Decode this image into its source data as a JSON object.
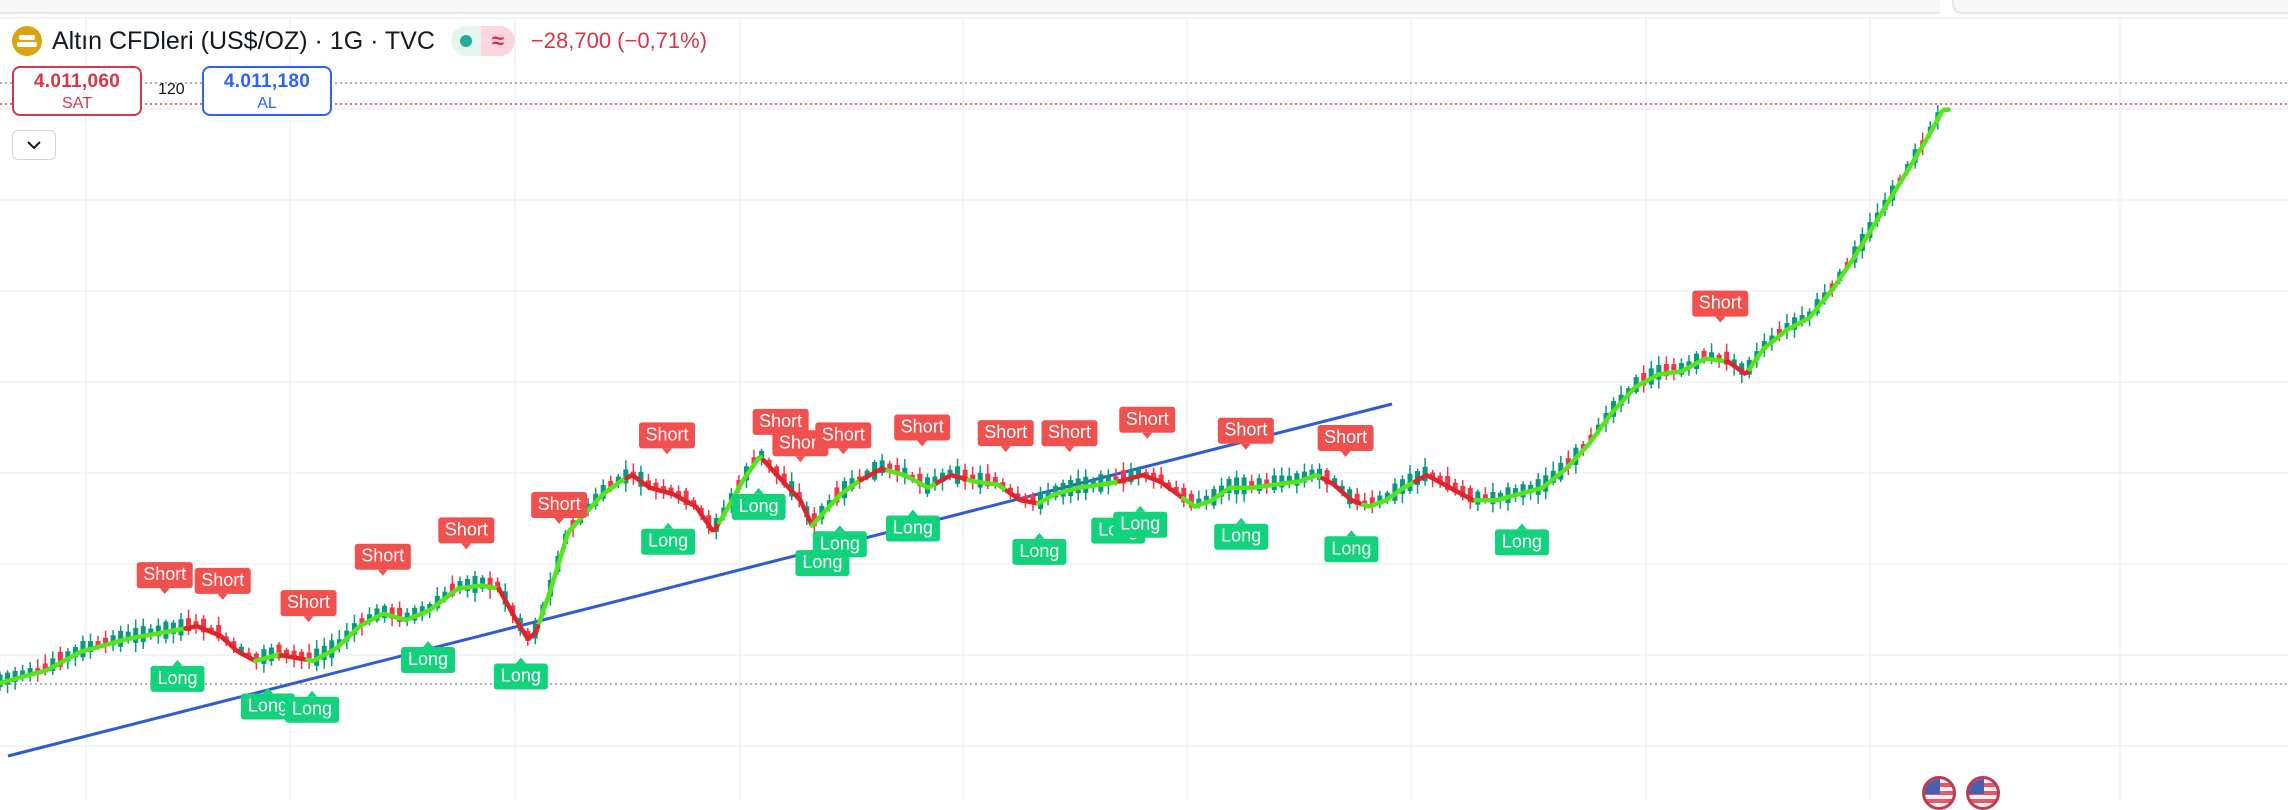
{
  "header": {
    "symbol_title": "Altın CFDleri (US$/OZ) · 1G · TVC",
    "change_text": "−28,700 (−0,71%)",
    "icons": [
      "gold-logo-icon",
      "market-open-dot-icon",
      "approx-icon"
    ]
  },
  "trade": {
    "sell_price": "4.011,060",
    "sell_label": "SAT",
    "spread": "120",
    "buy_price": "4.011,180",
    "buy_label": "AL"
  },
  "colors": {
    "up_candle": "#089981",
    "down_candle": "#f23645",
    "line_up": "#55e51c",
    "line_down": "#e0242c",
    "short_label": "#f0514f",
    "long_label": "#12d27b",
    "trendline": "#2e5bd6",
    "sell": "#d93645",
    "buy": "#2962ff"
  },
  "chart_data": {
    "type": "candlestick",
    "title": "Altın CFDleri (US$/OZ) · 1G · TVC",
    "grid": true,
    "price_axis_visible": false,
    "time_axis_visible": false,
    "close_path": {
      "points": [
        [
          0,
          0.0
        ],
        [
          40,
          0.02
        ],
        [
          70,
          0.05
        ],
        [
          110,
          0.07
        ],
        [
          140,
          0.08
        ],
        [
          170,
          0.09
        ],
        [
          190,
          0.075
        ],
        [
          205,
          0.05
        ],
        [
          220,
          0.035
        ],
        [
          240,
          0.045
        ],
        [
          255,
          0.04
        ],
        [
          270,
          0.035
        ],
        [
          290,
          0.055
        ],
        [
          310,
          0.09
        ],
        [
          330,
          0.11
        ],
        [
          350,
          0.1
        ],
        [
          370,
          0.115
        ],
        [
          395,
          0.15
        ],
        [
          415,
          0.155
        ],
        [
          430,
          0.15
        ],
        [
          445,
          0.1
        ],
        [
          455,
          0.07
        ],
        [
          462,
          0.08
        ],
        [
          475,
          0.15
        ],
        [
          490,
          0.24
        ],
        [
          505,
          0.27
        ],
        [
          520,
          0.3
        ],
        [
          535,
          0.32
        ],
        [
          545,
          0.33
        ],
        [
          560,
          0.31
        ],
        [
          580,
          0.3
        ],
        [
          600,
          0.28
        ],
        [
          615,
          0.24
        ],
        [
          625,
          0.27
        ],
        [
          640,
          0.32
        ],
        [
          655,
          0.36
        ],
        [
          670,
          0.33
        ],
        [
          690,
          0.29
        ],
        [
          700,
          0.25
        ],
        [
          710,
          0.27
        ],
        [
          725,
          0.3
        ],
        [
          740,
          0.32
        ],
        [
          760,
          0.34
        ],
        [
          780,
          0.33
        ],
        [
          800,
          0.31
        ],
        [
          820,
          0.33
        ],
        [
          840,
          0.32
        ],
        [
          860,
          0.315
        ],
        [
          880,
          0.29
        ],
        [
          895,
          0.285
        ],
        [
          910,
          0.3
        ],
        [
          930,
          0.31
        ],
        [
          950,
          0.315
        ],
        [
          965,
          0.32
        ],
        [
          985,
          0.33
        ],
        [
          1000,
          0.32
        ],
        [
          1015,
          0.3
        ],
        [
          1030,
          0.28
        ],
        [
          1045,
          0.29
        ],
        [
          1060,
          0.31
        ],
        [
          1080,
          0.31
        ],
        [
          1100,
          0.315
        ],
        [
          1120,
          0.32
        ],
        [
          1135,
          0.33
        ],
        [
          1150,
          0.315
        ],
        [
          1165,
          0.29
        ],
        [
          1180,
          0.28
        ],
        [
          1195,
          0.29
        ],
        [
          1210,
          0.31
        ],
        [
          1230,
          0.33
        ],
        [
          1250,
          0.31
        ],
        [
          1270,
          0.29
        ],
        [
          1290,
          0.29
        ],
        [
          1310,
          0.3
        ],
        [
          1330,
          0.31
        ],
        [
          1350,
          0.34
        ],
        [
          1370,
          0.38
        ],
        [
          1390,
          0.43
        ],
        [
          1410,
          0.47
        ],
        [
          1430,
          0.49
        ],
        [
          1450,
          0.495
        ],
        [
          1470,
          0.515
        ],
        [
          1490,
          0.51
        ],
        [
          1505,
          0.49
        ],
        [
          1520,
          0.53
        ],
        [
          1540,
          0.56
        ],
        [
          1560,
          0.58
        ],
        [
          1580,
          0.625
        ],
        [
          1600,
          0.68
        ],
        [
          1620,
          0.74
        ],
        [
          1640,
          0.8
        ],
        [
          1660,
          0.86
        ],
        [
          1675,
          0.91
        ]
      ],
      "direction_segments": [
        {
          "from": 0,
          "to": 160,
          "dir": "up"
        },
        {
          "from": 160,
          "to": 220,
          "dir": "down"
        },
        {
          "from": 220,
          "to": 242,
          "dir": "up"
        },
        {
          "from": 242,
          "to": 265,
          "dir": "down"
        },
        {
          "from": 265,
          "to": 430,
          "dir": "up"
        },
        {
          "from": 430,
          "to": 465,
          "dir": "down"
        },
        {
          "from": 465,
          "to": 540,
          "dir": "up"
        },
        {
          "from": 540,
          "to": 620,
          "dir": "down"
        },
        {
          "from": 620,
          "to": 658,
          "dir": "up"
        },
        {
          "from": 658,
          "to": 700,
          "dir": "down"
        },
        {
          "from": 700,
          "to": 742,
          "dir": "up"
        },
        {
          "from": 742,
          "to": 765,
          "dir": "down"
        },
        {
          "from": 765,
          "to": 808,
          "dir": "up"
        },
        {
          "from": 808,
          "to": 835,
          "dir": "down"
        },
        {
          "from": 835,
          "to": 868,
          "dir": "up"
        },
        {
          "from": 868,
          "to": 895,
          "dir": "down"
        },
        {
          "from": 895,
          "to": 965,
          "dir": "up"
        },
        {
          "from": 965,
          "to": 1020,
          "dir": "down"
        },
        {
          "from": 1020,
          "to": 1140,
          "dir": "up"
        },
        {
          "from": 1140,
          "to": 1175,
          "dir": "down"
        },
        {
          "from": 1175,
          "to": 1220,
          "dir": "up"
        },
        {
          "from": 1220,
          "to": 1272,
          "dir": "down"
        },
        {
          "from": 1272,
          "to": 1488,
          "dir": "up"
        },
        {
          "from": 1488,
          "to": 1508,
          "dir": "down"
        },
        {
          "from": 1508,
          "to": 1680,
          "dir": "up"
        }
      ]
    },
    "signals": [
      {
        "type": "Short",
        "label": "Short",
        "t": 142
      },
      {
        "type": "Short",
        "label": "Short",
        "t": 192
      },
      {
        "type": "Short",
        "label": "Short",
        "t": 266
      },
      {
        "type": "Short",
        "label": "Short",
        "t": 330
      },
      {
        "type": "Short",
        "label": "Short",
        "t": 402
      },
      {
        "type": "Short",
        "label": "Short",
        "t": 482
      },
      {
        "type": "Short",
        "label": "Short",
        "t": 575
      },
      {
        "type": "Short",
        "label": "Short",
        "t": 673
      },
      {
        "type": "Short",
        "label": "Short",
        "t": 690
      },
      {
        "type": "Short",
        "label": "Short",
        "t": 727
      },
      {
        "type": "Short",
        "label": "Short",
        "t": 795
      },
      {
        "type": "Short",
        "label": "Short",
        "t": 867
      },
      {
        "type": "Short",
        "label": "Short",
        "t": 922
      },
      {
        "type": "Short",
        "label": "Short",
        "t": 989
      },
      {
        "type": "Short",
        "label": "Short",
        "t": 1074
      },
      {
        "type": "Short",
        "label": "Short",
        "t": 1160
      },
      {
        "type": "Short",
        "label": "Short",
        "t": 1483
      },
      {
        "type": "Long",
        "label": "Long",
        "t": 153
      },
      {
        "type": "Long",
        "label": "Long",
        "t": 231
      },
      {
        "type": "Long",
        "label": "Long",
        "t": 269
      },
      {
        "type": "Long",
        "label": "Long",
        "t": 369
      },
      {
        "type": "Long",
        "label": "Long",
        "t": 449
      },
      {
        "type": "Long",
        "label": "Long",
        "t": 576
      },
      {
        "type": "Long",
        "label": "Long",
        "t": 654
      },
      {
        "type": "Long",
        "label": "Long",
        "t": 709
      },
      {
        "type": "Long",
        "label": "Long",
        "t": 724
      },
      {
        "type": "Long",
        "label": "Long",
        "t": 787
      },
      {
        "type": "Long",
        "label": "Long",
        "t": 896
      },
      {
        "type": "Long",
        "label": "Long",
        "t": 964
      },
      {
        "type": "Long",
        "label": "Long",
        "t": 983
      },
      {
        "type": "Long",
        "label": "Long",
        "t": 1070
      },
      {
        "type": "Long",
        "label": "Long",
        "t": 1165
      },
      {
        "type": "Long",
        "label": "Long",
        "t": 1312
      }
    ]
  }
}
